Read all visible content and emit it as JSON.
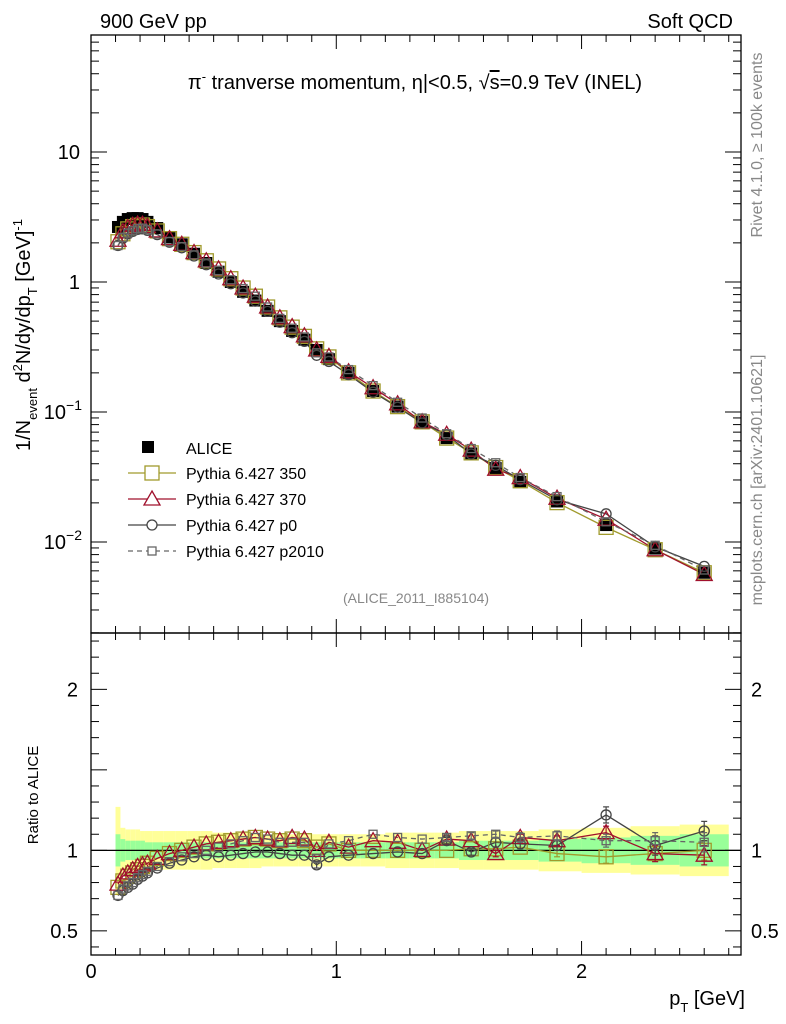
{
  "header": {
    "left": "900 GeV pp",
    "right": "Soft QCD"
  },
  "side_labels": {
    "rivet": "Rivet 4.1.0, ≥ 100k events",
    "mcplots": "mcplots.cern.ch [arXiv:2401.10621]"
  },
  "analysis_id": "(ALICE_2011_I885104)",
  "colors": {
    "alice": "#000000",
    "p350": "#a09a2c",
    "p370": "#a0102c",
    "p0": "#444444",
    "p2010": "#666666",
    "band_outer": "#ffff99",
    "band_inner": "#99ff99"
  },
  "chart_data": {
    "type": "line",
    "title_parts": {
      "pi": "π",
      "sup": "-",
      "text": " tranverse momentum, ",
      "eta": "η",
      "cut": "|<0.5, ",
      "sqrt": "√",
      "s": "s",
      "energy": "=0.9 TeV (INEL)"
    },
    "ylabel_parts": {
      "a": "1/N",
      "sub1": "event",
      "b": " d",
      "sup1": "2",
      "c": "N/dy/dp",
      "sub2": "T",
      "d": " [GeV]",
      "sup2": "-1"
    },
    "xlabel_parts": {
      "a": "p",
      "sub": "T",
      "b": " [GeV]"
    },
    "ratio_ylabel": "Ratio to ALICE",
    "xlim": [
      0,
      2.65
    ],
    "ylim_main_log10": [
      -2.7,
      1.9
    ],
    "ylim_ratio": [
      0.35,
      2.35
    ],
    "x_ticks": [
      {
        "v": 0,
        "label": "0"
      },
      {
        "v": 1,
        "label": "1"
      },
      {
        "v": 2,
        "label": "2"
      }
    ],
    "y_ticks_main": [
      {
        "v": 1,
        "base": "10",
        "exp": ""
      },
      {
        "v": 0,
        "base": "1",
        "exp": ""
      },
      {
        "v": -1,
        "base": "10",
        "exp": "−1"
      },
      {
        "v": -2,
        "base": "10",
        "exp": "−2"
      }
    ],
    "y_ticks_ratio": [
      {
        "v": 2,
        "label": "2"
      },
      {
        "v": 1,
        "label": "1"
      },
      {
        "v": 0.5,
        "label": "0.5"
      }
    ],
    "x": [
      0.11,
      0.13,
      0.15,
      0.17,
      0.19,
      0.21,
      0.23,
      0.27,
      0.32,
      0.37,
      0.42,
      0.47,
      0.52,
      0.57,
      0.62,
      0.67,
      0.72,
      0.77,
      0.82,
      0.87,
      0.92,
      0.97,
      1.05,
      1.15,
      1.25,
      1.35,
      1.45,
      1.55,
      1.65,
      1.75,
      1.9,
      2.1,
      2.3,
      2.5
    ],
    "data_values": [
      2.65,
      2.9,
      3.05,
      3.1,
      3.1,
      3.05,
      2.9,
      2.6,
      2.2,
      1.95,
      1.65,
      1.4,
      1.2,
      1.0,
      0.84,
      0.72,
      0.6,
      0.5,
      0.42,
      0.36,
      0.3,
      0.255,
      0.2,
      0.145,
      0.11,
      0.084,
      0.063,
      0.048,
      0.037,
      0.029,
      0.0205,
      0.0135,
      0.0089,
      0.0058
    ],
    "band_outer": [
      0.27,
      0.14,
      0.13,
      0.13,
      0.13,
      0.12,
      0.12,
      0.12,
      0.12,
      0.12,
      0.12,
      0.12,
      0.11,
      0.11,
      0.11,
      0.11,
      0.1,
      0.1,
      0.1,
      0.1,
      0.1,
      0.1,
      0.1,
      0.1,
      0.11,
      0.11,
      0.11,
      0.12,
      0.12,
      0.12,
      0.13,
      0.14,
      0.15,
      0.16
    ],
    "band_inner": [
      0.1,
      0.07,
      0.06,
      0.06,
      0.06,
      0.06,
      0.05,
      0.05,
      0.05,
      0.05,
      0.05,
      0.05,
      0.05,
      0.05,
      0.05,
      0.05,
      0.05,
      0.05,
      0.05,
      0.05,
      0.05,
      0.05,
      0.05,
      0.05,
      0.05,
      0.05,
      0.05,
      0.06,
      0.06,
      0.06,
      0.07,
      0.08,
      0.09,
      0.1
    ],
    "series": [
      {
        "key": "p350",
        "name": "Pythia 6.427 350",
        "marker": "square-open",
        "dashed": false,
        "ratio": [
          0.77,
          0.81,
          0.84,
          0.86,
          0.88,
          0.9,
          0.92,
          0.95,
          0.98,
          1.0,
          1.02,
          1.04,
          1.05,
          1.06,
          1.07,
          1.08,
          1.07,
          1.06,
          1.07,
          1.06,
          1.02,
          1.04,
          1.0,
          1.0,
          1.0,
          1.0,
          1.0,
          1.01,
          1.01,
          1.02,
          0.98,
          0.96,
          0.98,
          1.0
        ],
        "err": [
          0,
          0,
          0,
          0,
          0,
          0,
          0,
          0,
          0,
          0,
          0,
          0,
          0,
          0,
          0,
          0,
          0,
          0,
          0,
          0,
          0,
          0,
          0,
          0,
          0,
          0,
          0,
          0,
          0,
          0,
          0.02,
          0.04,
          0.05,
          0.06
        ]
      },
      {
        "key": "p370",
        "name": "Pythia 6.427 370",
        "marker": "triangle-open",
        "dashed": false,
        "ratio": [
          0.79,
          0.84,
          0.86,
          0.88,
          0.9,
          0.91,
          0.92,
          0.95,
          0.98,
          1.0,
          1.02,
          1.04,
          1.05,
          1.06,
          1.07,
          1.08,
          1.07,
          1.06,
          1.08,
          1.07,
          1.0,
          1.05,
          1.02,
          1.06,
          1.05,
          1.0,
          1.07,
          1.06,
          0.98,
          1.08,
          1.06,
          1.11,
          0.98,
          0.97
        ],
        "err": [
          0,
          0,
          0,
          0,
          0,
          0,
          0,
          0,
          0,
          0,
          0,
          0,
          0,
          0,
          0,
          0,
          0,
          0,
          0,
          0,
          0,
          0,
          0,
          0,
          0,
          0,
          0,
          0,
          0.02,
          0.02,
          0.03,
          0.04,
          0.05,
          0.06
        ]
      },
      {
        "key": "p0",
        "name": "Pythia 6.427 p0",
        "marker": "circle-open",
        "dashed": false,
        "ratio": [
          0.72,
          0.75,
          0.77,
          0.79,
          0.82,
          0.84,
          0.86,
          0.89,
          0.92,
          0.94,
          0.96,
          0.97,
          0.96,
          0.97,
          0.98,
          0.99,
          0.99,
          0.98,
          0.97,
          0.97,
          0.91,
          0.96,
          0.97,
          0.98,
          0.99,
          0.98,
          1.06,
          0.99,
          1.05,
          1.04,
          1.03,
          1.22,
          1.03,
          1.12
        ],
        "err": [
          0,
          0,
          0,
          0,
          0,
          0,
          0,
          0,
          0,
          0,
          0,
          0,
          0,
          0,
          0,
          0,
          0,
          0,
          0,
          0,
          0.02,
          0,
          0,
          0,
          0,
          0,
          0.02,
          0.02,
          0.03,
          0.03,
          0.03,
          0.05,
          0.06,
          0.06
        ]
      },
      {
        "key": "p2010",
        "name": "Pythia 6.427 p2010",
        "marker": "square-small",
        "dashed": true,
        "ratio": [
          0.72,
          0.76,
          0.78,
          0.8,
          0.83,
          0.85,
          0.87,
          0.9,
          0.93,
          0.96,
          0.98,
          1.0,
          1.02,
          1.04,
          1.06,
          1.08,
          1.07,
          1.05,
          1.05,
          1.05,
          0.95,
          1.04,
          1.06,
          1.1,
          1.08,
          1.07,
          1.08,
          1.09,
          1.1,
          1.08,
          1.09,
          1.06,
          1.06,
          1.05
        ],
        "err": [
          0,
          0,
          0,
          0,
          0,
          0,
          0,
          0,
          0,
          0,
          0,
          0,
          0,
          0,
          0,
          0,
          0,
          0,
          0,
          0,
          0,
          0,
          0,
          0,
          0,
          0,
          0.02,
          0.02,
          0.02,
          0.03,
          0.03,
          0.04,
          0.05,
          0.06
        ]
      }
    ],
    "legend": {
      "placement": "bottom-left",
      "entries": [
        "ALICE",
        "Pythia 6.427 350",
        "Pythia 6.427 370",
        "Pythia 6.427 p0",
        "Pythia 6.427 p2010"
      ]
    }
  }
}
